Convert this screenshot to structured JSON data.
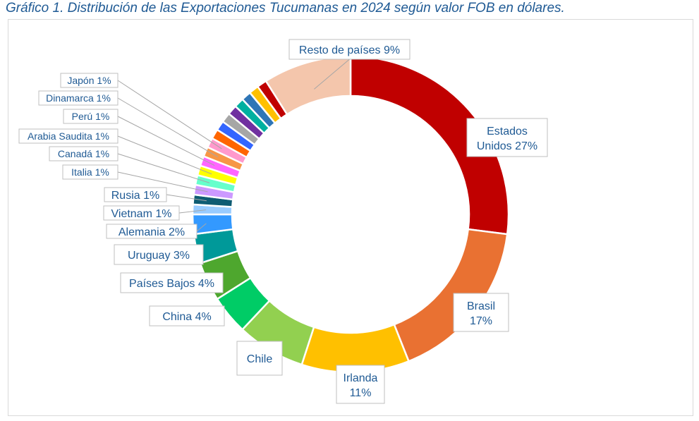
{
  "title": "Gráfico 1. Distribución de las Exportaciones Tucumanas en 2024 según valor FOB en dólares.",
  "chart_data": {
    "type": "pie",
    "variant": "donut",
    "title": "Gráfico 1. Distribución de las Exportaciones Tucumanas en 2024 según valor FOB en dólares.",
    "unit": "%",
    "legend": "none",
    "slices": [
      {
        "name": "Estados Unidos",
        "value": 27,
        "label": "Estados Unidos 27%",
        "color": "#c00000"
      },
      {
        "name": "Brasil",
        "value": 17,
        "label": "Brasil 17%",
        "color": "#e97132"
      },
      {
        "name": "Irlanda",
        "value": 11,
        "label": "Irlanda 11%",
        "color": "#ffc000"
      },
      {
        "name": "Chile",
        "value": 7,
        "label": "Chile",
        "color": "#92d050"
      },
      {
        "name": "China",
        "value": 4,
        "label": "China 4%",
        "color": "#00cc66"
      },
      {
        "name": "Países Bajos",
        "value": 4,
        "label": "Países Bajos 4%",
        "color": "#4ea72e"
      },
      {
        "name": "Uruguay",
        "value": 3,
        "label": "Uruguay 3%",
        "color": "#009999"
      },
      {
        "name": "Alemania",
        "value": 2,
        "label": "Alemania 2%",
        "color": "#3399ff"
      },
      {
        "name": "Vietnam",
        "value": 1,
        "label": "Vietnam 1%",
        "color": "#99ccff"
      },
      {
        "name": "Rusia",
        "value": 1,
        "label": "Rusia 1%",
        "color": "#0e5c73"
      },
      {
        "name": "Italia",
        "value": 1,
        "label": "Italia 1%",
        "color": "#cc99ff"
      },
      {
        "name": "Canadá",
        "value": 1,
        "label": "Canadá 1%",
        "color": "#66ffcc"
      },
      {
        "name": "Arabia Saudita",
        "value": 1,
        "label": "Arabia Saudita 1%",
        "color": "#ffff00"
      },
      {
        "name": "Perú",
        "value": 1,
        "label": "Perú 1%",
        "color": "#ff66ff"
      },
      {
        "name": "Dinamarca",
        "value": 1,
        "label": "Dinamarca 1%",
        "color": "#f79646"
      },
      {
        "name": "Japón",
        "value": 1,
        "label": "Japón 1%",
        "color": "#ff99cc"
      },
      {
        "name": "",
        "value": 1,
        "label": "",
        "color": "#ff6600"
      },
      {
        "name": "",
        "value": 1,
        "label": "",
        "color": "#3366ff"
      },
      {
        "name": "",
        "value": 1,
        "label": "",
        "color": "#a6a6a6"
      },
      {
        "name": "",
        "value": 1,
        "label": "",
        "color": "#7030a0"
      },
      {
        "name": "",
        "value": 1,
        "label": "",
        "color": "#00b0a0"
      },
      {
        "name": "",
        "value": 1,
        "label": "",
        "color": "#2e75b6"
      },
      {
        "name": "",
        "value": 1,
        "label": "",
        "color": "#ffc000"
      },
      {
        "name": "",
        "value": 1,
        "label": "",
        "color": "#c00000"
      },
      {
        "name": "Resto de países",
        "value": 9,
        "label": "Resto de países 9%",
        "color": "#f4c6ac"
      }
    ]
  }
}
